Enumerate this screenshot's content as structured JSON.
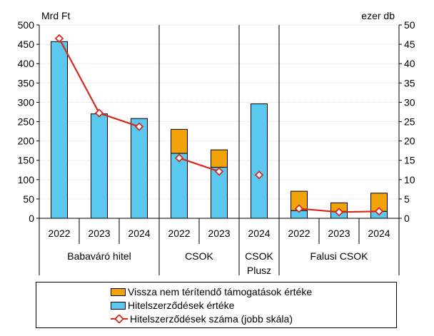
{
  "chart_data": {
    "type": "bar",
    "left_unit": "Mrd Ft",
    "right_unit": "ezer db",
    "ylim_left": [
      0,
      500
    ],
    "ylim_right": [
      0,
      50
    ],
    "yticks_left": [
      "0",
      "50",
      "100",
      "150",
      "200",
      "250",
      "300",
      "350",
      "400",
      "450",
      "500"
    ],
    "yticks_right": [
      "0",
      "5",
      "10",
      "15",
      "20",
      "25",
      "30",
      "35",
      "40",
      "45",
      "50"
    ],
    "groups": [
      {
        "label": "Babaváró hitel",
        "years": [
          "2022",
          "2023",
          "2024"
        ]
      },
      {
        "label": "CSOK",
        "years": [
          "2022",
          "2023"
        ]
      },
      {
        "label": "CSOK\nPlusz",
        "years": [
          "2024"
        ]
      },
      {
        "label": "Falusi CSOK",
        "years": [
          "2022",
          "2023",
          "2024"
        ]
      }
    ],
    "categories": [
      "2022",
      "2023",
      "2024",
      "2022",
      "2023",
      "2024",
      "2022",
      "2023",
      "2024"
    ],
    "series": [
      {
        "name": "Hitelszerződések értéke",
        "type": "bar",
        "color": "#5BC8F0",
        "values": [
          457,
          270,
          258,
          168,
          132,
          296,
          20,
          18,
          18
        ]
      },
      {
        "name": "Vissza nem térítendő támogatások értéke",
        "type": "bar-stacked",
        "color": "#F0A30A",
        "values": [
          0,
          0,
          0,
          62,
          45,
          0,
          50,
          22,
          47
        ]
      },
      {
        "name": "Hitelszerződések száma (jobb skála)",
        "type": "line",
        "axis": "right",
        "color": "#D42A1E",
        "values": [
          46.5,
          27.2,
          23.7,
          15.6,
          12.1,
          11.2,
          2.5,
          1.6,
          1.8
        ],
        "segments": [
          [
            0,
            2
          ],
          [
            3,
            4
          ],
          [
            5,
            5
          ],
          [
            6,
            8
          ]
        ]
      }
    ],
    "legend": [
      {
        "label": "Vissza nem térítendő támogatások értéke",
        "kind": "swatch",
        "color": "#F0A30A"
      },
      {
        "label": "Hitelszerződések értéke",
        "kind": "swatch",
        "color": "#5BC8F0"
      },
      {
        "label": "Hitelszerződések száma (jobb skála)",
        "kind": "line",
        "color": "#D42A1E"
      }
    ],
    "grid": true
  }
}
